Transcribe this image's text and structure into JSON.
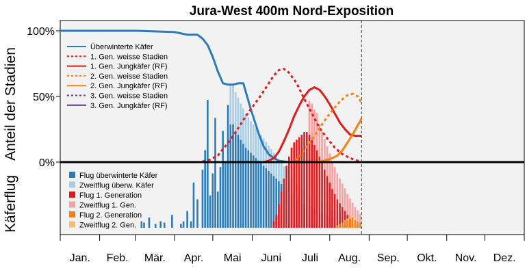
{
  "chart_data": {
    "type": "line",
    "title": "Jura-West 400m Nord-Exposition",
    "ylabel_upper": "Anteil der Stadien",
    "ylabel_lower": "Käferflug",
    "yticks": [
      "0%",
      "50%",
      "100%"
    ],
    "ylim": [
      0,
      100
    ],
    "months": [
      "Jan.",
      "Feb.",
      "Mär.",
      "Apr.",
      "Mai",
      "Juni",
      "Juli",
      "Aug.",
      "Sep.",
      "Okt.",
      "Nov.",
      "Dez."
    ],
    "xlim": [
      0,
      365
    ],
    "today_marker_day": 237,
    "series": [
      {
        "name": "Überwinterte Käfer",
        "color": "#2b7bba",
        "dash": "solid",
        "x": [
          0,
          60,
          90,
          100,
          108,
          112,
          116,
          120,
          124,
          128,
          132,
          136,
          140,
          144,
          150,
          156,
          160,
          164,
          168,
          172,
          176,
          180
        ],
        "y": [
          100,
          100,
          99,
          97,
          97,
          94,
          89,
          80,
          69,
          60,
          59,
          59,
          60,
          60,
          40,
          22,
          12,
          6,
          3,
          1,
          0.5,
          0
        ]
      },
      {
        "name": "1. Gen. weisse Stadien",
        "color": "#e31a1c",
        "dash": "dot",
        "x": [
          0,
          110,
          118,
          124,
          128,
          134,
          140,
          146,
          152,
          158,
          164,
          168,
          172,
          176,
          180,
          186,
          192,
          198,
          204,
          210,
          216,
          222,
          228,
          234,
          237
        ],
        "y": [
          0,
          0,
          2,
          5,
          10,
          17,
          26,
          35,
          43,
          51,
          60,
          66,
          70,
          71,
          68,
          60,
          48,
          37,
          26,
          18,
          11,
          6,
          3,
          1,
          0
        ]
      },
      {
        "name": "1. Gen. Jungkäfer (RF)",
        "color": "#e31a1c",
        "dash": "solid",
        "x": [
          0,
          160,
          164,
          168,
          172,
          176,
          180,
          184,
          188,
          192,
          196,
          200,
          204,
          208,
          212,
          216,
          220,
          224,
          228,
          232,
          237
        ],
        "y": [
          0,
          0,
          1,
          3,
          8,
          16,
          25,
          35,
          43,
          50,
          55,
          57,
          55,
          50,
          44,
          37,
          30,
          25,
          21,
          20,
          20
        ]
      },
      {
        "name": "2. Gen. weisse Stadien",
        "color": "#ff7f0e",
        "dash": "dot",
        "x": [
          0,
          183,
          188,
          194,
          200,
          206,
          212,
          218,
          222,
          226,
          230,
          234,
          237
        ],
        "y": [
          0,
          0,
          4,
          12,
          20,
          29,
          37,
          44,
          48,
          51,
          52,
          50,
          45
        ]
      },
      {
        "name": "2. Gen. Jungkäfer (RF)",
        "color": "#ff7f0e",
        "dash": "solid",
        "x": [
          0,
          200,
          208,
          214,
          218,
          222,
          226,
          230,
          234,
          237
        ],
        "y": [
          0,
          0,
          1,
          3,
          5,
          9,
          15,
          21,
          28,
          33
        ]
      },
      {
        "name": "3. Gen. weisse Stadien",
        "color": "#5a3a99",
        "dash": "dot",
        "x": [
          0,
          237
        ],
        "y": [
          0,
          0
        ]
      },
      {
        "name": "3. Gen. Jungkäfer (RF)",
        "color": "#5a3a99",
        "dash": "solid",
        "x": [
          0,
          237
        ],
        "y": [
          0,
          0
        ]
      }
    ],
    "flight_legend": [
      {
        "name": "Flug überwinterte Käfer",
        "color": "#2b7bba"
      },
      {
        "name": "Zweitflug überw. Käfer",
        "color": "#a6cde6"
      },
      {
        "name": "Flug 1. Generation",
        "color": "#e31a1c"
      },
      {
        "name": "Zweitflug 1. Gen.",
        "color": "#f9a0a0"
      },
      {
        "name": "Flug 2. Generation",
        "color": "#ff7f0e"
      },
      {
        "name": "Zweitflug 2. Gen.",
        "color": "#fdbf6f"
      }
    ],
    "flight_activity": {
      "note_scale": "relative 0-1 (no printed scale)",
      "overwintered": {
        "color": "#2b7bba",
        "days": [
          64,
          66,
          70,
          75,
          79,
          82,
          88,
          95,
          97,
          100,
          103,
          105,
          108,
          112,
          114,
          116,
          118,
          120,
          122,
          124,
          126,
          128,
          130,
          132,
          134,
          136,
          138,
          140,
          142,
          144,
          146,
          148,
          150,
          152,
          154,
          156,
          158,
          160,
          162,
          164,
          166,
          168,
          170,
          172,
          174,
          176,
          178,
          180,
          182,
          184,
          186,
          188,
          190,
          192,
          194,
          196,
          198,
          200,
          202,
          204,
          206,
          208,
          210,
          212,
          214,
          216,
          218,
          220,
          222,
          224,
          226,
          228,
          230,
          232,
          234,
          236
        ],
        "values": [
          0.05,
          0.04,
          0.08,
          0.03,
          0.05,
          0.04,
          0.1,
          0.03,
          0.05,
          0.13,
          0.05,
          0.35,
          0.22,
          0.45,
          0.6,
          0.99,
          0.25,
          0.42,
          0.85,
          0.28,
          0.47,
          0.75,
          0.5,
          0.95,
          0.8,
          0.8,
          0.75,
          0.72,
          0.68,
          0.65,
          0.62,
          0.6,
          0.58,
          0.56,
          0.54,
          0.52,
          0.5,
          0.48,
          0.46,
          0.44,
          0.42,
          0.4,
          0.38,
          0.36,
          0.34,
          0.32,
          0.3,
          0.28,
          0.26,
          0.24,
          0.22,
          0.2,
          0.19,
          0.18,
          0.17,
          0.16,
          0.15,
          0.14,
          0.13,
          0.12,
          0.11,
          0.1,
          0.1,
          0.09,
          0.08,
          0.07,
          0.06,
          0.05,
          0.05,
          0.04,
          0.04,
          0.03,
          0.03,
          0.02,
          0.02,
          0.02
        ]
      },
      "overwintered_second": {
        "color": "#a6cde6",
        "days": [
          134,
          136,
          138,
          140,
          142,
          144,
          146,
          148,
          150,
          152,
          154,
          156,
          158,
          160,
          162,
          164,
          166,
          168,
          170,
          172,
          174,
          176,
          178,
          180,
          182,
          184,
          186,
          188,
          190,
          192,
          194,
          196,
          198,
          200,
          202,
          204,
          206,
          208,
          210,
          212,
          214,
          216,
          218,
          220,
          222,
          224,
          226,
          228,
          230,
          232,
          234,
          236
        ],
        "values": [
          0.9,
          0.88,
          0.85,
          0.82,
          0.8,
          0.78,
          0.75,
          0.73,
          0.7,
          0.68,
          0.66,
          0.64,
          0.62,
          0.6,
          0.58,
          0.56,
          0.54,
          0.52,
          0.5,
          0.48,
          0.46,
          0.44,
          0.42,
          0.4,
          0.38,
          0.36,
          0.34,
          0.33,
          0.32,
          0.31,
          0.3,
          0.29,
          0.28,
          0.27,
          0.26,
          0.25,
          0.24,
          0.23,
          0.22,
          0.21,
          0.2,
          0.19,
          0.18,
          0.17,
          0.16,
          0.15,
          0.14,
          0.13,
          0.12,
          0.11,
          0.1,
          0.09
        ]
      },
      "gen1": {
        "color": "#e31a1c",
        "days": [
          168,
          170,
          172,
          174,
          176,
          178,
          180,
          182,
          184,
          186,
          188,
          190,
          192,
          194,
          196,
          198,
          200,
          202,
          204,
          206,
          208,
          210,
          212,
          214,
          216,
          218,
          220,
          222,
          224,
          226,
          228,
          230,
          232,
          234,
          236
        ],
        "values": [
          0.05,
          0.1,
          0.18,
          0.28,
          0.38,
          0.48,
          0.55,
          0.62,
          0.66,
          0.68,
          0.7,
          0.72,
          0.74,
          0.74,
          0.72,
          0.68,
          0.64,
          0.6,
          0.55,
          0.5,
          0.45,
          0.4,
          0.35,
          0.3,
          0.26,
          0.22,
          0.19,
          0.16,
          0.13,
          0.1,
          0.08,
          0.06,
          0.04,
          0.03,
          0.02
        ]
      },
      "gen1_second": {
        "color": "#f9a0a0",
        "days": [
          196,
          198,
          200,
          202,
          204,
          206,
          208,
          210,
          212,
          214,
          216,
          218,
          220,
          222,
          224,
          226,
          228,
          230,
          232,
          234,
          236
        ],
        "values": [
          0.75,
          0.8,
          0.78,
          0.82,
          0.72,
          0.7,
          0.68,
          0.66,
          0.64,
          0.62,
          0.6,
          0.57,
          0.55,
          0.52,
          0.5,
          0.46,
          0.42,
          0.38,
          0.34,
          0.3,
          0.25
        ]
      },
      "gen2": {
        "color": "#ff7f0e",
        "days": [
          218,
          220,
          222,
          224,
          226,
          228,
          230,
          232,
          234,
          236
        ],
        "values": [
          0.02,
          0.03,
          0.04,
          0.05,
          0.06,
          0.07,
          0.08,
          0.06,
          0.05,
          0.04
        ]
      },
      "gen2_second": {
        "color": "#fdbf6f",
        "days": [
          224,
          226,
          228,
          230,
          232,
          234,
          236
        ],
        "values": [
          0.02,
          0.03,
          0.04,
          0.05,
          0.04,
          0.03,
          0.02
        ]
      }
    }
  }
}
